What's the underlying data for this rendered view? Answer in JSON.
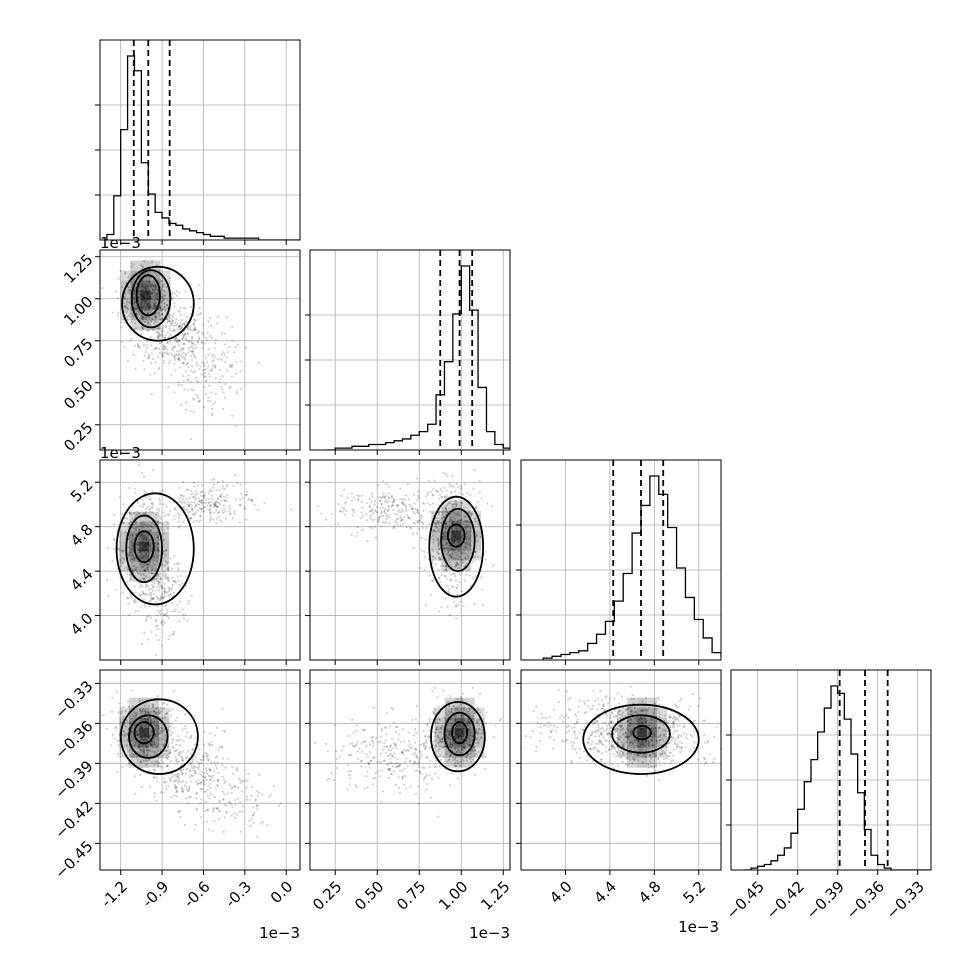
{
  "chart_data": [
    {
      "id": "hist-0",
      "type": "histogram",
      "param": 0,
      "x_ticks": [
        "-1.2",
        "-0.9",
        "-0.6",
        "-0.3",
        "0.0"
      ],
      "x_range": [
        -1.35,
        0.1
      ],
      "bin_start": -1.3,
      "bin_width": 0.05,
      "counts": [
        3,
        24,
        60,
        100,
        92,
        42,
        25,
        15,
        12,
        9,
        8,
        6,
        5,
        4,
        3,
        2,
        2,
        1,
        1,
        1,
        1,
        1,
        0,
        0,
        0,
        0,
        0,
        0
      ],
      "quantiles": [
        -1.105,
        -1.0,
        -0.845
      ]
    },
    {
      "id": "hist-1",
      "type": "histogram",
      "param": 1,
      "x_ticks": [
        "0.25",
        "0.50",
        "0.75",
        "1.00",
        "1.25"
      ],
      "x_range": [
        0.1,
        1.29
      ],
      "bin_start": 0.2,
      "bin_width": 0.05,
      "counts": [
        0,
        1,
        1,
        2,
        2,
        3,
        3,
        4,
        5,
        6,
        8,
        10,
        14,
        30,
        48,
        74,
        100,
        76,
        34,
        10,
        3,
        1
      ],
      "quantiles": [
        0.875,
        0.99,
        1.065
      ]
    },
    {
      "id": "hist-2",
      "type": "histogram",
      "param": 2,
      "x_ticks": [
        "4.0",
        "4.4",
        "4.8",
        "5.2"
      ],
      "x_range": [
        3.6,
        5.4
      ],
      "bin_start": 3.8,
      "bin_width": 0.08,
      "counts": [
        1,
        2,
        3,
        4,
        5,
        9,
        14,
        21,
        32,
        47,
        69,
        84,
        100,
        90,
        72,
        50,
        34,
        22,
        12,
        4,
        2,
        1
      ],
      "quantiles": [
        4.43,
        4.68,
        4.88
      ]
    },
    {
      "id": "hist-3",
      "type": "histogram",
      "param": 3,
      "x_ticks": [
        "−0.45",
        "−0.42",
        "−0.39",
        "−0.36",
        "−0.33"
      ],
      "x_range": [
        -0.47,
        -0.32
      ],
      "bin_start": -0.46,
      "bin_width": 0.005,
      "counts": [
        0,
        1,
        2,
        3,
        5,
        8,
        12,
        20,
        33,
        48,
        60,
        75,
        88,
        100,
        96,
        82,
        63,
        42,
        22,
        8,
        3,
        1,
        0,
        0,
        0,
        0,
        0,
        0,
        0,
        0
      ],
      "quantiles": [
        -0.3885,
        -0.3695,
        -0.3525
      ]
    },
    {
      "id": "scatter-1-0",
      "type": "scatter",
      "xparam": 0,
      "yparam": 1,
      "y_ticks": [
        "0.25",
        "0.50",
        "0.75",
        "1.00",
        "1.25"
      ],
      "y_range": [
        0.1,
        1.29
      ],
      "offset_label": "1e−3",
      "clouds": [
        {
          "cx": -1.02,
          "cy": 1.0,
          "sx": 0.09,
          "sy": 0.09,
          "n": 500
        },
        {
          "cx": -0.85,
          "cy": 0.8,
          "sx": 0.12,
          "sy": 0.11,
          "n": 300
        },
        {
          "cx": -0.6,
          "cy": 0.6,
          "sx": 0.14,
          "sy": 0.15,
          "n": 200
        }
      ],
      "contours": [
        {
          "cx": -1.0,
          "cy": 1.02,
          "rx": 0.085,
          "ry": 0.12
        },
        {
          "cx": -0.98,
          "cy": 1.0,
          "rx": 0.14,
          "ry": 0.17
        },
        {
          "cx": -0.93,
          "cy": 0.97,
          "rx": 0.26,
          "ry": 0.22
        }
      ],
      "peak": {
        "x": -1.02,
        "y": 1.02
      }
    },
    {
      "id": "scatter-2-0",
      "type": "scatter",
      "xparam": 0,
      "yparam": 2,
      "y_ticks": [
        "4.0",
        "4.4",
        "4.8",
        "5.2"
      ],
      "y_range": [
        3.6,
        5.4
      ],
      "offset_label": "1e−3",
      "clouds": [
        {
          "cx": -1.05,
          "cy": 4.62,
          "sx": 0.09,
          "sy": 0.22,
          "n": 500
        },
        {
          "cx": -0.9,
          "cy": 4.2,
          "sx": 0.08,
          "sy": 0.2,
          "n": 200
        },
        {
          "cx": -0.6,
          "cy": 5.0,
          "sx": 0.18,
          "sy": 0.08,
          "n": 250
        }
      ],
      "contours": [
        {
          "cx": -1.03,
          "cy": 4.62,
          "rx": 0.07,
          "ry": 0.14
        },
        {
          "cx": -1.03,
          "cy": 4.6,
          "rx": 0.13,
          "ry": 0.3
        },
        {
          "cx": -0.95,
          "cy": 4.6,
          "rx": 0.28,
          "ry": 0.5
        }
      ],
      "peak": {
        "x": -1.03,
        "y": 4.62
      }
    },
    {
      "id": "scatter-2-1",
      "type": "scatter",
      "xparam": 1,
      "yparam": 2,
      "y_ticks": [],
      "y_range": [
        3.6,
        5.4
      ],
      "offset_label": "",
      "clouds": [
        {
          "cx": 0.95,
          "cy": 4.7,
          "sx": 0.08,
          "sy": 0.25,
          "n": 550
        },
        {
          "cx": 0.6,
          "cy": 4.95,
          "sx": 0.18,
          "sy": 0.1,
          "n": 250
        }
      ],
      "contours": [
        {
          "cx": 0.97,
          "cy": 4.72,
          "rx": 0.05,
          "ry": 0.1
        },
        {
          "cx": 0.98,
          "cy": 4.68,
          "rx": 0.1,
          "ry": 0.28
        },
        {
          "cx": 0.97,
          "cy": 4.62,
          "rx": 0.16,
          "ry": 0.45
        }
      ],
      "peak": {
        "x": 0.97,
        "y": 4.72
      }
    },
    {
      "id": "scatter-3-0",
      "type": "scatter",
      "xparam": 0,
      "yparam": 3,
      "y_ticks": [
        "−0.33",
        "−0.36",
        "−0.39",
        "−0.42",
        "−0.45"
      ],
      "y_range": [
        -0.46,
        -0.32
      ],
      "offset_label": "",
      "clouds": [
        {
          "cx": -1.02,
          "cy": -0.368,
          "sx": 0.1,
          "sy": 0.012,
          "n": 500
        },
        {
          "cx": -0.7,
          "cy": -0.395,
          "sx": 0.15,
          "sy": 0.015,
          "n": 300
        },
        {
          "cx": -0.4,
          "cy": -0.42,
          "sx": 0.15,
          "sy": 0.012,
          "n": 100
        }
      ],
      "contours": [
        {
          "cx": -1.03,
          "cy": -0.367,
          "rx": 0.07,
          "ry": 0.008
        },
        {
          "cx": -1.0,
          "cy": -0.37,
          "rx": 0.14,
          "ry": 0.016
        },
        {
          "cx": -0.92,
          "cy": -0.37,
          "rx": 0.28,
          "ry": 0.028
        }
      ],
      "peak": {
        "x": -1.03,
        "y": -0.367
      }
    },
    {
      "id": "scatter-3-1",
      "type": "scatter",
      "xparam": 1,
      "yparam": 3,
      "y_ticks": [],
      "y_range": [
        -0.46,
        -0.32
      ],
      "offset_label": "",
      "clouds": [
        {
          "cx": 0.98,
          "cy": -0.368,
          "sx": 0.08,
          "sy": 0.012,
          "n": 500
        },
        {
          "cx": 0.6,
          "cy": -0.385,
          "sx": 0.2,
          "sy": 0.015,
          "n": 300
        }
      ],
      "contours": [
        {
          "cx": 0.99,
          "cy": -0.367,
          "rx": 0.045,
          "ry": 0.008
        },
        {
          "cx": 0.99,
          "cy": -0.368,
          "rx": 0.09,
          "ry": 0.016
        },
        {
          "cx": 0.98,
          "cy": -0.37,
          "rx": 0.16,
          "ry": 0.026
        }
      ],
      "peak": {
        "x": 0.99,
        "y": -0.367
      }
    },
    {
      "id": "scatter-3-2",
      "type": "scatter",
      "xparam": 2,
      "yparam": 3,
      "y_ticks": [],
      "y_range": [
        -0.46,
        -0.32
      ],
      "offset_label": "",
      "clouds": [
        {
          "cx": 4.68,
          "cy": -0.368,
          "sx": 0.28,
          "sy": 0.012,
          "n": 600
        },
        {
          "cx": 4.3,
          "cy": -0.36,
          "sx": 0.35,
          "sy": 0.012,
          "n": 200
        }
      ],
      "contours": [
        {
          "cx": 4.69,
          "cy": -0.367,
          "rx": 0.08,
          "ry": 0.005
        },
        {
          "cx": 4.68,
          "cy": -0.368,
          "rx": 0.26,
          "ry": 0.014
        },
        {
          "cx": 4.68,
          "cy": -0.372,
          "rx": 0.52,
          "ry": 0.026
        }
      ],
      "peak": {
        "x": 4.69,
        "y": -0.367
      }
    }
  ],
  "offset_labels": {
    "x": "1e−3",
    "y": "1e−3"
  }
}
